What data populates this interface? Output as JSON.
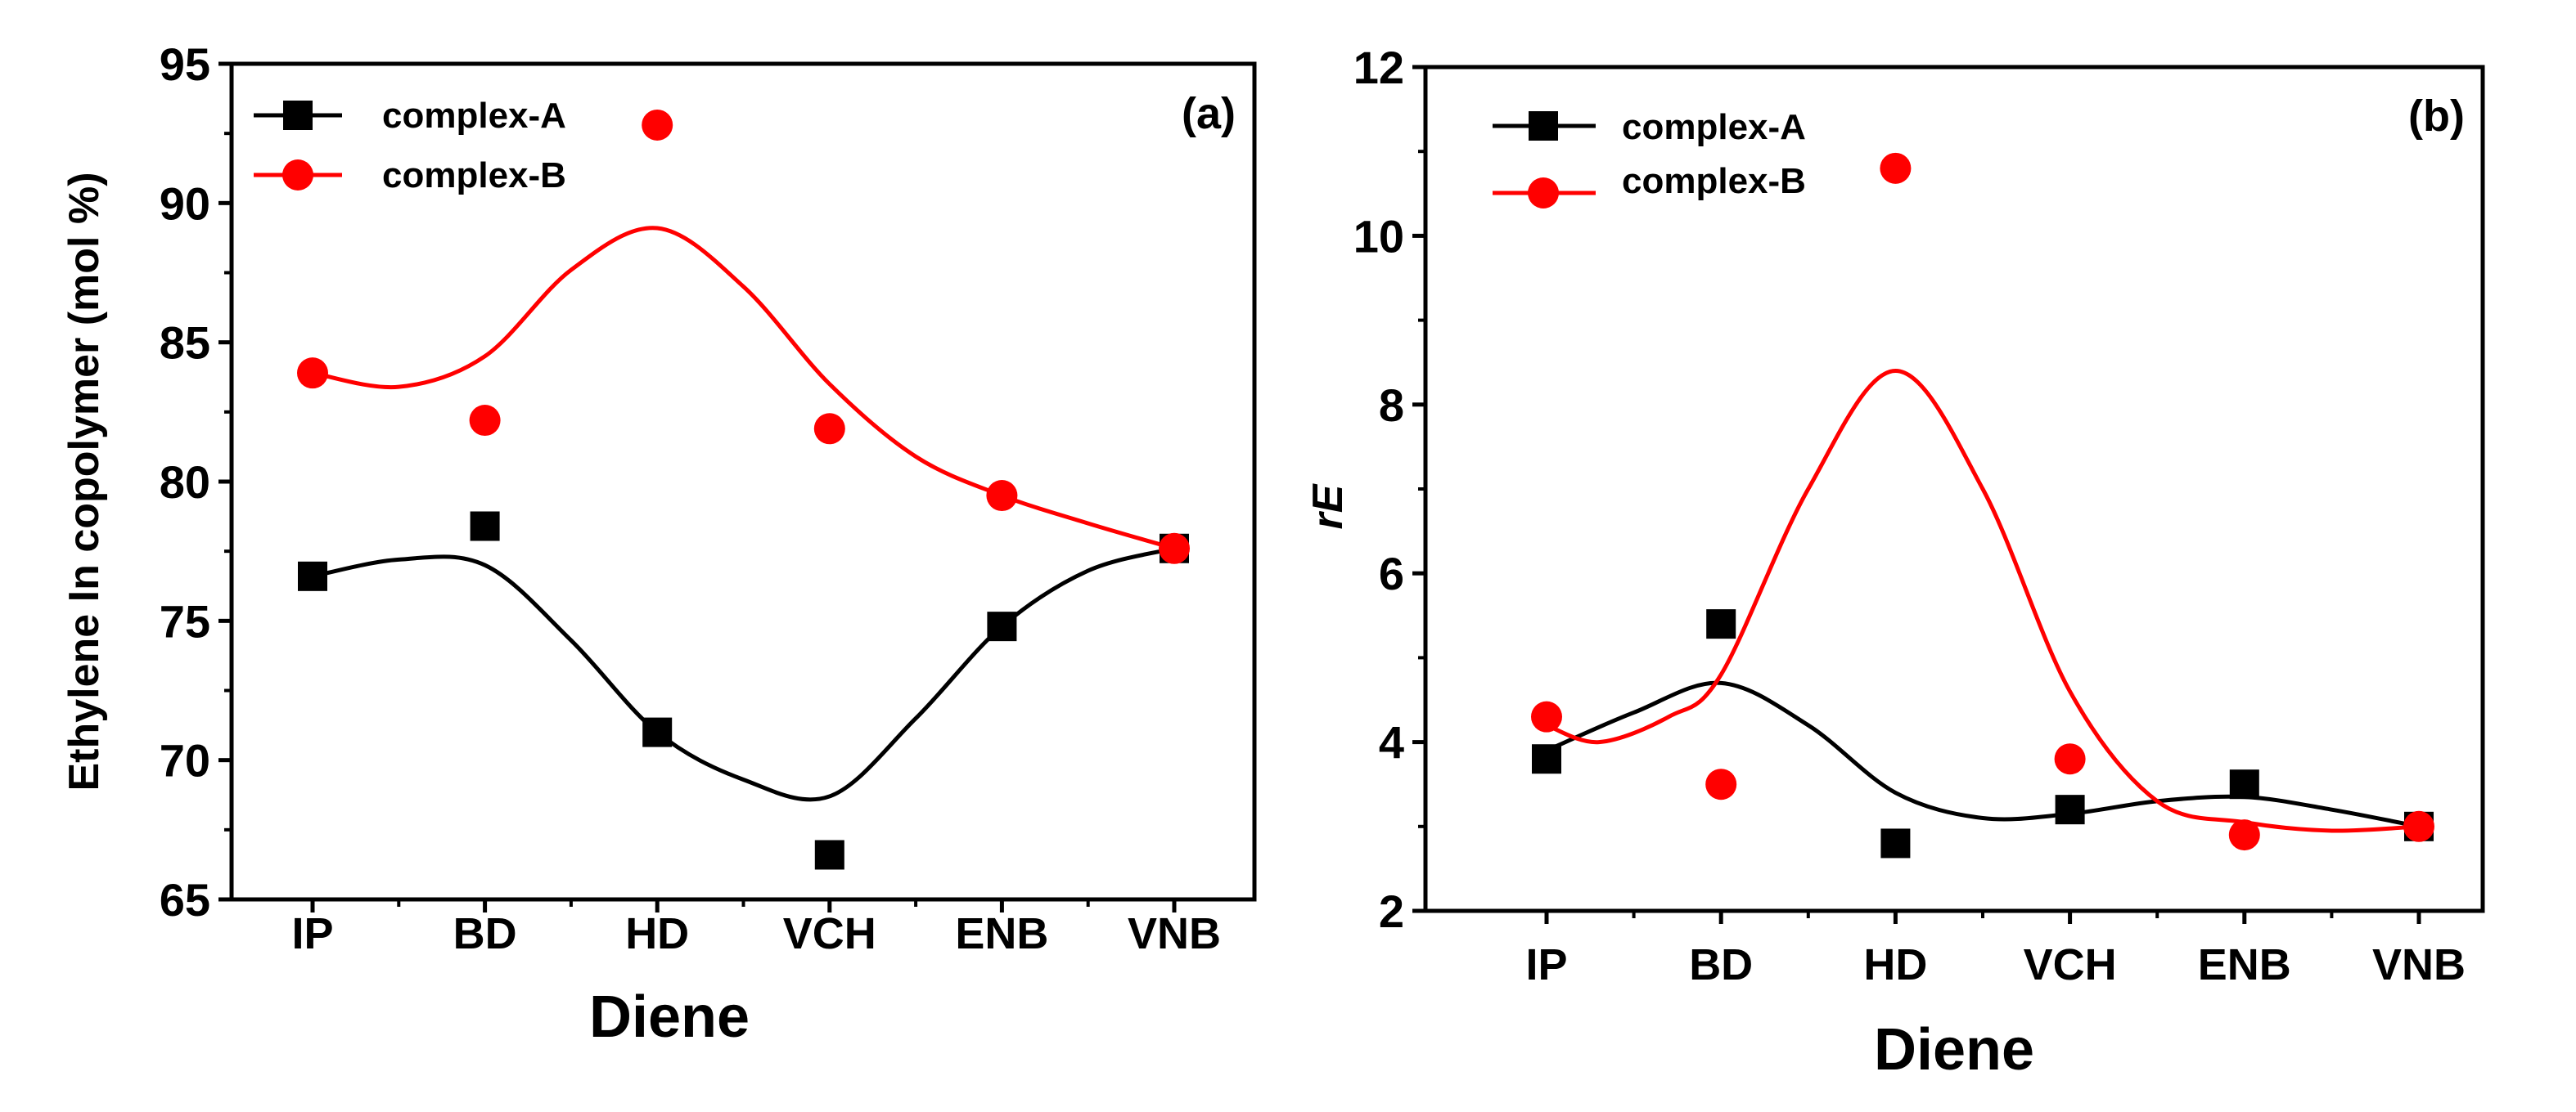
{
  "chart_data": [
    {
      "type": "scatter",
      "panel_label": "(a)",
      "xlabel": "Diene",
      "ylabel": "Ethylene In copolymer (mol %)",
      "categories": [
        "IP",
        "BD",
        "HD",
        "VCH",
        "ENB",
        "VNB"
      ],
      "ylim": [
        65,
        95
      ],
      "yticks": [
        65,
        70,
        75,
        80,
        85,
        90,
        95
      ],
      "legend_position": "top-left",
      "series": [
        {
          "name": "complex-A",
          "marker": "square",
          "color": "#000000",
          "values": [
            76.6,
            78.4,
            71.0,
            66.6,
            74.8,
            77.6
          ],
          "trend": "smooth spline fit"
        },
        {
          "name": "complex-B",
          "marker": "circle",
          "color": "#ff0000",
          "values": [
            83.9,
            82.2,
            92.8,
            81.9,
            79.5,
            77.6
          ],
          "trend": "smooth spline fit"
        }
      ],
      "trend_lines": [
        [
          [
            0,
            76.6
          ],
          [
            0.5,
            77.2
          ],
          [
            1,
            77.0
          ],
          [
            1.5,
            74.3
          ],
          [
            2,
            71.0
          ],
          [
            2.5,
            69.3
          ],
          [
            3,
            68.7
          ],
          [
            3.5,
            71.5
          ],
          [
            4,
            74.8
          ],
          [
            4.5,
            76.8
          ],
          [
            5,
            77.6
          ]
        ],
        [
          [
            0,
            83.9
          ],
          [
            0.5,
            83.4
          ],
          [
            1,
            84.5
          ],
          [
            1.5,
            87.6
          ],
          [
            2,
            89.1
          ],
          [
            2.5,
            87.0
          ],
          [
            3,
            83.5
          ],
          [
            3.5,
            80.9
          ],
          [
            4,
            79.5
          ],
          [
            4.5,
            78.5
          ],
          [
            5,
            77.6
          ]
        ]
      ]
    },
    {
      "type": "scatter",
      "panel_label": "(b)",
      "xlabel": "Diene",
      "ylabel": "rE",
      "categories": [
        "IP",
        "BD",
        "HD",
        "VCH",
        "ENB",
        "VNB"
      ],
      "ylim": [
        2,
        12
      ],
      "yticks": [
        2,
        4,
        6,
        8,
        10,
        12
      ],
      "legend_position": "top-left",
      "series": [
        {
          "name": "complex-A",
          "marker": "square",
          "color": "#000000",
          "values": [
            3.8,
            5.4,
            2.8,
            3.2,
            3.5,
            3.0
          ],
          "trend": "smooth spline fit"
        },
        {
          "name": "complex-B",
          "marker": "circle",
          "color": "#ff0000",
          "values": [
            4.3,
            3.5,
            10.8,
            3.8,
            2.9,
            3.0
          ],
          "trend": "smooth spline fit"
        }
      ],
      "trend_lines": [
        [
          [
            0,
            3.9
          ],
          [
            0.5,
            4.35
          ],
          [
            1,
            4.7
          ],
          [
            1.5,
            4.2
          ],
          [
            2,
            3.4
          ],
          [
            2.5,
            3.1
          ],
          [
            3,
            3.15
          ],
          [
            3.5,
            3.3
          ],
          [
            4,
            3.35
          ],
          [
            4.5,
            3.2
          ],
          [
            5,
            3.0
          ]
        ],
        [
          [
            0,
            4.2
          ],
          [
            0.3,
            4.0
          ],
          [
            0.7,
            4.3
          ],
          [
            1,
            4.8
          ],
          [
            1.5,
            7.0
          ],
          [
            2,
            8.4
          ],
          [
            2.5,
            7.0
          ],
          [
            3,
            4.6
          ],
          [
            3.5,
            3.3
          ],
          [
            4,
            3.05
          ],
          [
            4.5,
            2.95
          ],
          [
            5,
            3.0
          ]
        ]
      ]
    }
  ]
}
